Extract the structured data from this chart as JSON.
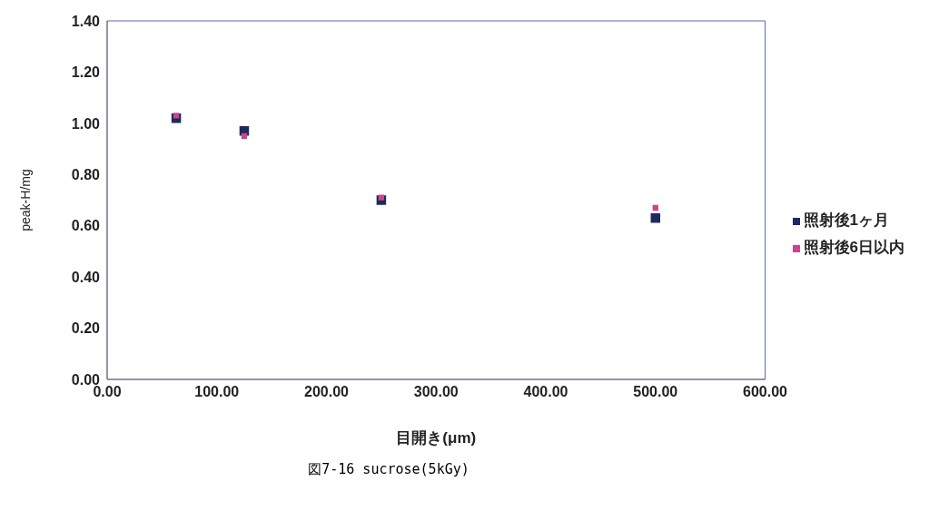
{
  "chart_data": {
    "type": "scatter",
    "xlabel": "目開き(μm)",
    "ylabel": "peak-H/mg",
    "annotations": [
      "図7-16 sucrose(5kGy)"
    ],
    "x": [
      63,
      125,
      250,
      500
    ],
    "series": [
      {
        "name": "照射後1ヶ月",
        "color": "#1f2a5c",
        "values": [
          1.02,
          0.97,
          0.7,
          0.63
        ]
      },
      {
        "name": "照射後6日以内",
        "color": "#c8468c",
        "values": [
          1.03,
          0.95,
          0.71,
          0.67
        ]
      }
    ],
    "xlim": [
      0,
      600
    ],
    "xticks": [
      {
        "value": 0,
        "label": "0.00"
      },
      {
        "value": 100,
        "label": "100.00"
      },
      {
        "value": 200,
        "label": "200.00"
      },
      {
        "value": 300,
        "label": "300.00"
      },
      {
        "value": 400,
        "label": "400.00"
      },
      {
        "value": 500,
        "label": "500.00"
      },
      {
        "value": 600,
        "label": "600.00"
      }
    ],
    "ylim": [
      0,
      1.4
    ],
    "yticks": [
      {
        "value": 0,
        "label": "0.00"
      },
      {
        "value": 0.2,
        "label": "0.20"
      },
      {
        "value": 0.4,
        "label": "0.40"
      },
      {
        "value": 0.6,
        "label": "0.60"
      },
      {
        "value": 0.8,
        "label": "0.80"
      },
      {
        "value": 1.0,
        "label": "1.00"
      },
      {
        "value": 1.2,
        "label": "1.20"
      },
      {
        "value": 1.4,
        "label": "1.40"
      }
    ],
    "grid": false,
    "legend": "right",
    "marker": "square"
  }
}
